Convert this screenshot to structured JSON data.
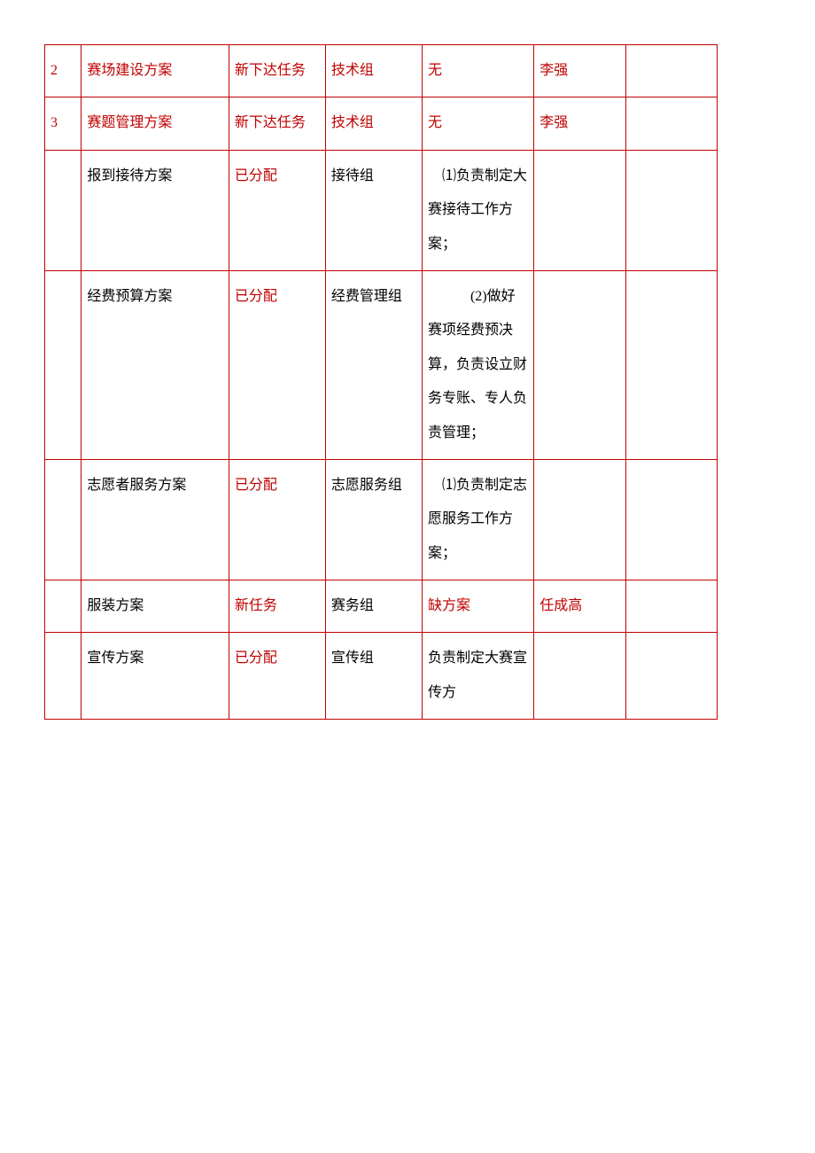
{
  "border_color": "#c00000",
  "text_red": "#c00000",
  "text_black": "#000000",
  "background": "#ffffff",
  "font_family": "SimSun",
  "rows": {
    "r0": {
      "num": "2",
      "name": "赛场建设方案",
      "status": "新下达任务",
      "group": "技术组",
      "desc": "无",
      "owner": "李强",
      "extra": ""
    },
    "r1": {
      "num": "3",
      "name": "赛题管理方案",
      "status": "新下达任务",
      "group": "技术组",
      "desc": "无",
      "owner": "李强",
      "extra": ""
    },
    "r2": {
      "num": "",
      "name": "报到接待方案",
      "status": "已分配",
      "group": "接待组",
      "desc": "　⑴负责制定大赛接待工作方案；",
      "owner": "",
      "extra": ""
    },
    "r3": {
      "num": "",
      "name": "经费预算方案",
      "status": "已分配",
      "group": "经费管理组",
      "desc": "　　　(2)做好赛项经费预决算，负责设立财务专账、专人负责管理；",
      "owner": "",
      "extra": ""
    },
    "r4": {
      "num": "",
      "name": "志愿者服务方案",
      "status": "已分配",
      "group": "志愿服务组",
      "desc": "　⑴负责制定志愿服务工作方案；",
      "owner": "",
      "extra": ""
    },
    "r5": {
      "num": "",
      "name": "服装方案",
      "status": "新任务",
      "group": "赛务组",
      "desc": "缺方案",
      "owner": "任成高",
      "extra": ""
    },
    "r6": {
      "num": "",
      "name": "宣传方案",
      "status": "已分配",
      "group": "宣传组",
      "desc": "负责制定大赛宣传方",
      "owner": "",
      "extra": ""
    }
  }
}
